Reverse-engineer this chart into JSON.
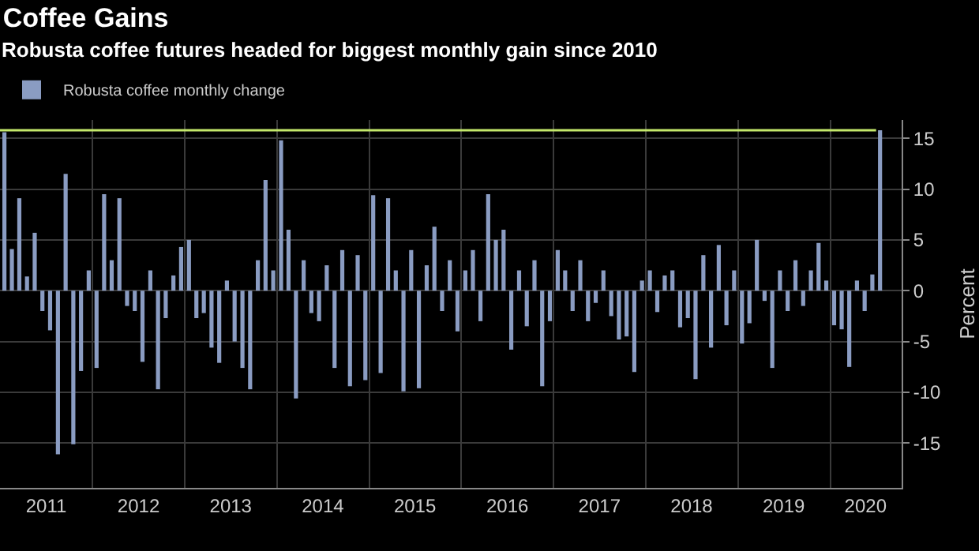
{
  "chart_data": {
    "type": "bar",
    "title": "Coffee Gains",
    "subtitle": "Robusta coffee futures headed for biggest monthly gain since 2010",
    "ylabel": "Percent",
    "x": [
      "2011-01",
      "2011-02",
      "2011-03",
      "2011-04",
      "2011-05",
      "2011-06",
      "2011-07",
      "2011-08",
      "2011-09",
      "2011-10",
      "2011-11",
      "2011-12",
      "2012-01",
      "2012-02",
      "2012-03",
      "2012-04",
      "2012-05",
      "2012-06",
      "2012-07",
      "2012-08",
      "2012-09",
      "2012-10",
      "2012-11",
      "2012-12",
      "2013-01",
      "2013-02",
      "2013-03",
      "2013-04",
      "2013-05",
      "2013-06",
      "2013-07",
      "2013-08",
      "2013-09",
      "2013-10",
      "2013-11",
      "2013-12",
      "2014-01",
      "2014-02",
      "2014-03",
      "2014-04",
      "2014-05",
      "2014-06",
      "2014-07",
      "2014-08",
      "2014-09",
      "2014-10",
      "2014-11",
      "2014-12",
      "2015-01",
      "2015-02",
      "2015-03",
      "2015-04",
      "2015-05",
      "2015-06",
      "2015-07",
      "2015-08",
      "2015-09",
      "2015-10",
      "2015-11",
      "2015-12",
      "2016-01",
      "2016-02",
      "2016-03",
      "2016-04",
      "2016-05",
      "2016-06",
      "2016-07",
      "2016-08",
      "2016-09",
      "2016-10",
      "2016-11",
      "2016-12",
      "2017-01",
      "2017-02",
      "2017-03",
      "2017-04",
      "2017-05",
      "2017-06",
      "2017-07",
      "2017-08",
      "2017-09",
      "2017-10",
      "2017-11",
      "2017-12",
      "2018-01",
      "2018-02",
      "2018-03",
      "2018-04",
      "2018-05",
      "2018-06",
      "2018-07",
      "2018-08",
      "2018-09",
      "2018-10",
      "2018-11",
      "2018-12",
      "2019-01",
      "2019-02",
      "2019-03",
      "2019-04",
      "2019-05",
      "2019-06",
      "2019-07",
      "2019-08",
      "2019-09",
      "2019-10",
      "2019-11",
      "2019-12",
      "2020-01",
      "2020-02",
      "2020-03",
      "2020-04",
      "2020-05",
      "2020-06",
      "2020-07"
    ],
    "series": [
      {
        "name": "Robusta coffee monthly change",
        "color": "#8a9cc2",
        "values": [
          15.6,
          4.1,
          9.1,
          1.4,
          5.7,
          -2.0,
          -3.9,
          -16.1,
          11.5,
          -15.1,
          -7.9,
          2.0,
          -7.6,
          9.5,
          3.0,
          9.1,
          -1.5,
          -2.0,
          -7.0,
          2.0,
          -9.7,
          -2.7,
          1.5,
          4.3,
          5.0,
          -2.7,
          -2.2,
          -5.6,
          -7.1,
          1.0,
          -5.0,
          -7.6,
          -9.7,
          3.0,
          10.9,
          2.0,
          14.8,
          6.0,
          -10.6,
          3.0,
          -2.2,
          -3.0,
          2.5,
          -7.6,
          4.0,
          -9.4,
          3.5,
          -8.8,
          9.4,
          -8.1,
          9.1,
          2.0,
          -9.9,
          4.0,
          -9.6,
          2.5,
          6.3,
          -2.0,
          3.0,
          -4.0,
          2.0,
          4.0,
          -3.0,
          9.5,
          5.0,
          6.0,
          -5.8,
          2.0,
          -3.5,
          3.0,
          -9.4,
          -3.0,
          4.0,
          2.0,
          -2.0,
          3.0,
          -3.0,
          -1.2,
          2.0,
          -2.5,
          -4.8,
          -4.5,
          -8.0,
          1.0,
          2.0,
          -2.1,
          1.5,
          2.0,
          -3.6,
          -2.7,
          -8.7,
          3.5,
          -5.6,
          4.5,
          -3.4,
          2.0,
          -5.2,
          -3.2,
          5.0,
          -1.0,
          -7.6,
          2.0,
          -2.0,
          3.0,
          -1.5,
          2.0,
          4.7,
          1.0,
          -3.4,
          -3.8,
          -7.5,
          1.0,
          -2.0,
          1.6,
          15.8
        ]
      }
    ],
    "xlim": [
      "2010-12-30",
      "2020-10-10"
    ],
    "xticks": [
      {
        "value": "2011-07-01",
        "label": "2011"
      },
      {
        "value": "2012-07-01",
        "label": "2012"
      },
      {
        "value": "2013-07-01",
        "label": "2013"
      },
      {
        "value": "2014-07-01",
        "label": "2014"
      },
      {
        "value": "2015-07-01",
        "label": "2015"
      },
      {
        "value": "2016-07-01",
        "label": "2016"
      },
      {
        "value": "2017-07-01",
        "label": "2017"
      },
      {
        "value": "2018-07-01",
        "label": "2018"
      },
      {
        "value": "2019-07-01",
        "label": "2019"
      },
      {
        "value": "2020-05-20",
        "label": "2020"
      }
    ],
    "ylim": [
      -19.4,
      16.8
    ],
    "yticks": [
      -15,
      -10,
      -5,
      0,
      5,
      10,
      15
    ],
    "ref_lines": [
      {
        "axis": "y",
        "value": 15.8,
        "color": "#c4e86b"
      }
    ],
    "grid": true,
    "legend": "top left"
  }
}
